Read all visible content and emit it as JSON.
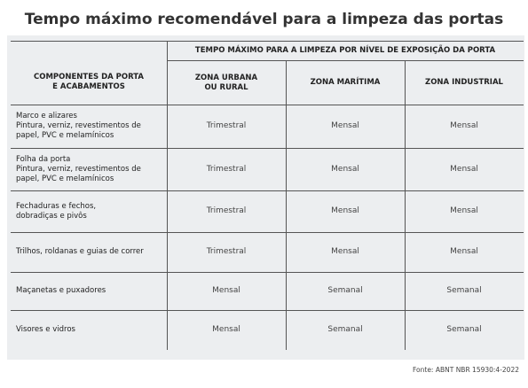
{
  "header": {
    "title": "Tempo máximo recomendável para a limpeza das portas"
  },
  "table": {
    "group_header": "TEMPO MÁXIMO PARA A LIMPEZA POR NÍVEL DE EXPOSIÇÃO DA PORTA",
    "first_header": [
      "COMPONENTES DA PORTA",
      "E ACABAMENTOS"
    ],
    "columns": [
      [
        "ZONA URBANA",
        "OU RURAL"
      ],
      [
        "ZONA MARÍTIMA"
      ],
      [
        "ZONA INDUSTRIAL"
      ]
    ],
    "rows": [
      {
        "component": [
          "Marco e alizares",
          "Pintura, verniz, revestimentos de",
          "papel, PVC e melamínicos"
        ],
        "cells": [
          "Trimestral",
          "Mensal",
          "Mensal"
        ]
      },
      {
        "component": [
          "Folha da porta",
          "Pintura, verniz, revestimentos de",
          "papel, PVC e melamínicos"
        ],
        "cells": [
          "Trimestral",
          "Mensal",
          "Mensal"
        ]
      },
      {
        "component": [
          "Fechaduras e fechos,",
          "dobradiças e pivôs"
        ],
        "cells": [
          "Trimestral",
          "Mensal",
          "Mensal"
        ]
      },
      {
        "component": [
          "Trilhos, roldanas e guias de correr"
        ],
        "cells": [
          "Trimestral",
          "Mensal",
          "Mensal"
        ]
      },
      {
        "component": [
          "Maçanetas e puxadores"
        ],
        "cells": [
          "Mensal",
          "Semanal",
          "Semanal"
        ]
      },
      {
        "component": [
          "Visores e vidros"
        ],
        "cells": [
          "Mensal",
          "Semanal",
          "Semanal"
        ]
      }
    ]
  },
  "footer": {
    "source": "Fonte: ABNT NBR 15930:4-2022"
  }
}
